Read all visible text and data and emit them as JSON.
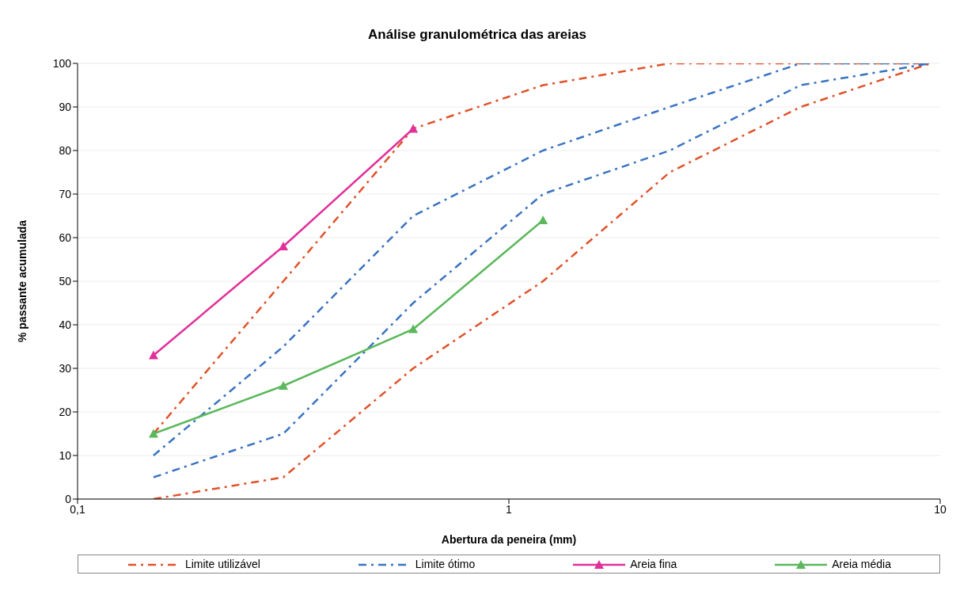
{
  "chart_data": {
    "type": "line",
    "title": "Análise granulométrica das areias",
    "xlabel": "Abertura da peneira (mm)",
    "ylabel": "% passante acumulada",
    "log": "x",
    "xlim": [
      0.1,
      10
    ],
    "xticks": [
      {
        "value": 0.1,
        "label": "0,1"
      },
      1,
      10
    ],
    "ylim": [
      0,
      100
    ],
    "yticks": [
      0,
      10,
      20,
      30,
      40,
      50,
      60,
      70,
      80,
      90,
      100
    ],
    "grid": "y",
    "legend": "bottom",
    "series": [
      {
        "name": "Limite utilizável",
        "color": "#e0522a",
        "line_style": "dashed",
        "marker": "none",
        "x": [
          0.15,
          0.3,
          0.6,
          1.2,
          2.36,
          4.75,
          9.5
        ],
        "values": [
          15,
          50,
          85,
          95,
          100,
          100,
          100
        ]
      },
      {
        "color": "#e0522a",
        "line_style": "dashed",
        "marker": "none",
        "x": [
          0.15,
          0.3,
          0.6,
          1.2,
          2.36,
          4.75,
          9.5
        ],
        "values": [
          0,
          5,
          30,
          50,
          75,
          90,
          100
        ]
      },
      {
        "name": "Limite ótimo",
        "color": "#3a73c0",
        "line_style": "dashed",
        "marker": "none",
        "x": [
          0.15,
          0.3,
          0.6,
          1.2,
          2.36,
          4.75,
          9.5
        ],
        "values": [
          10,
          35,
          65,
          80,
          90,
          100,
          100
        ]
      },
      {
        "color": "#3a73c0",
        "line_style": "dashed",
        "marker": "none",
        "x": [
          0.15,
          0.3,
          0.6,
          1.2,
          2.36,
          4.75,
          9.5
        ],
        "values": [
          5,
          15,
          45,
          70,
          80,
          95,
          100
        ]
      },
      {
        "name": "Areia fina",
        "color": "#e0309a",
        "line_style": "solid",
        "marker": "triangle",
        "x": [
          0.15,
          0.3,
          0.6
        ],
        "values": [
          33,
          58,
          85
        ]
      },
      {
        "name": "Areia média",
        "color": "#5cb85c",
        "line_style": "solid",
        "marker": "triangle",
        "x": [
          0.15,
          0.3,
          0.6,
          1.2
        ],
        "values": [
          15,
          26,
          39,
          64
        ]
      }
    ]
  }
}
